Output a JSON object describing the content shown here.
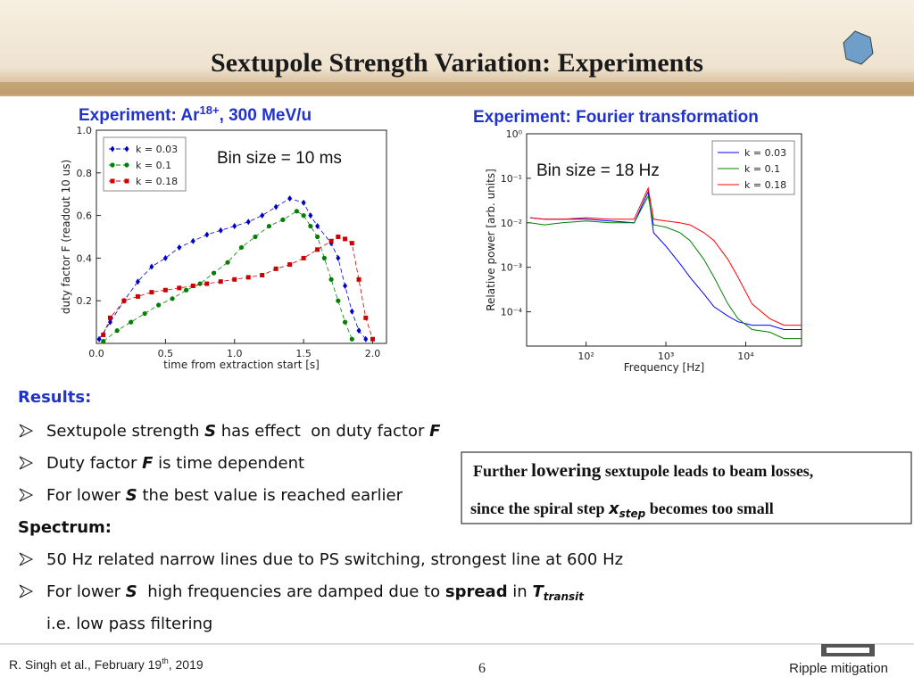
{
  "header": {
    "title": "Sextupole Strength Variation: Experiments"
  },
  "chart_data": [
    {
      "type": "line",
      "title": {
        "text": "Experiment: Ar",
        "superscript": "18+",
        "suffix": ", 300 MeV/u"
      },
      "annotation": "Bin size = 10 ms",
      "xlabel": "time from extraction start [s]",
      "ylabel": "duty factor F (readout 10 us)",
      "xlim": [
        0,
        2.1
      ],
      "ylim": [
        0,
        1
      ],
      "xticks": [
        {
          "value": 0,
          "label": "0.0"
        },
        0.5,
        {
          "value": 1,
          "label": "1.0"
        },
        1.5,
        {
          "value": 2,
          "label": "2.0"
        }
      ],
      "yticks": [
        0.2,
        0.4,
        0.6,
        0.8,
        {
          "value": 1,
          "label": "1.0"
        }
      ],
      "legend": "upper left",
      "linestyle": "dashed",
      "markers": true,
      "series": [
        {
          "name": "k = 0.03",
          "color": "#0000cc",
          "marker": "diamond",
          "x": [
            0.02,
            0.1,
            0.2,
            0.3,
            0.4,
            0.5,
            0.6,
            0.7,
            0.8,
            0.9,
            1.0,
            1.1,
            1.2,
            1.3,
            1.4,
            1.5,
            1.55,
            1.6,
            1.7,
            1.75,
            1.8,
            1.85,
            1.9,
            1.95
          ],
          "values": [
            0.02,
            0.1,
            0.2,
            0.29,
            0.36,
            0.4,
            0.45,
            0.48,
            0.51,
            0.53,
            0.55,
            0.57,
            0.6,
            0.64,
            0.68,
            0.66,
            0.6,
            0.55,
            0.47,
            0.4,
            0.27,
            0.15,
            0.06,
            0.02
          ]
        },
        {
          "name": "k = 0.1",
          "color": "#007f00",
          "marker": "circle",
          "x": [
            0.05,
            0.15,
            0.25,
            0.35,
            0.45,
            0.55,
            0.65,
            0.75,
            0.85,
            0.95,
            1.05,
            1.15,
            1.25,
            1.35,
            1.45,
            1.5,
            1.55,
            1.6,
            1.65,
            1.7,
            1.75,
            1.8,
            1.85
          ],
          "values": [
            0.01,
            0.06,
            0.1,
            0.14,
            0.18,
            0.21,
            0.25,
            0.28,
            0.33,
            0.38,
            0.45,
            0.5,
            0.55,
            0.58,
            0.62,
            0.6,
            0.55,
            0.5,
            0.4,
            0.3,
            0.2,
            0.1,
            0.02
          ]
        },
        {
          "name": "k = 0.18",
          "color": "#cc0000",
          "marker": "square",
          "x": [
            0.05,
            0.1,
            0.2,
            0.3,
            0.4,
            0.5,
            0.6,
            0.7,
            0.8,
            0.9,
            1.0,
            1.1,
            1.2,
            1.3,
            1.4,
            1.5,
            1.6,
            1.7,
            1.75,
            1.8,
            1.85,
            1.9,
            1.95,
            2.0
          ],
          "values": [
            0.04,
            0.12,
            0.2,
            0.22,
            0.24,
            0.25,
            0.26,
            0.27,
            0.28,
            0.29,
            0.3,
            0.31,
            0.32,
            0.35,
            0.37,
            0.4,
            0.44,
            0.48,
            0.5,
            0.49,
            0.47,
            0.3,
            0.12,
            0.02
          ]
        }
      ]
    },
    {
      "type": "line",
      "title": "Experiment: Fourier transformation",
      "annotation": "Bin size = 18 Hz",
      "xlabel": "Frequency [Hz]",
      "ylabel": "Relative power [arb. units]",
      "xscale": "log",
      "yscale": "log",
      "xlim": [
        18,
        50000
      ],
      "ylim": [
        1.7e-05,
        1
      ],
      "xticks": [
        {
          "value": 100,
          "label": "10²"
        },
        {
          "value": 1000,
          "label": "10³"
        },
        {
          "value": 10000,
          "label": "10⁴"
        }
      ],
      "yticks": [
        {
          "value": 1,
          "label": "10⁰"
        },
        {
          "value": 0.1,
          "label": "10⁻¹"
        },
        {
          "value": 0.01,
          "label": "10⁻²"
        },
        {
          "value": 0.001,
          "label": "10⁻³"
        },
        {
          "value": 0.0001,
          "label": "10⁻⁴"
        }
      ],
      "legend": "upper right",
      "linestyle": "solid",
      "markers": false,
      "series": [
        {
          "name": "k = 0.03",
          "color": "#0000ff",
          "x": [
            20,
            30,
            50,
            100,
            200,
            400,
            600,
            700,
            1000,
            1500,
            2000,
            3000,
            4000,
            6000,
            8000,
            12000,
            20000,
            30000,
            50000
          ],
          "values": [
            0.013,
            0.012,
            0.012,
            0.012,
            0.011,
            0.01,
            0.05,
            0.006,
            0.003,
            0.0012,
            0.0006,
            0.00025,
            0.00013,
            8e-05,
            6e-05,
            5e-05,
            5e-05,
            4e-05,
            4e-05
          ]
        },
        {
          "name": "k = 0.1",
          "color": "#008000",
          "x": [
            20,
            30,
            50,
            100,
            200,
            400,
            600,
            700,
            1000,
            1500,
            2000,
            3000,
            4000,
            6000,
            8000,
            12000,
            20000,
            30000,
            50000
          ],
          "values": [
            0.01,
            0.009,
            0.01,
            0.011,
            0.01,
            0.01,
            0.04,
            0.009,
            0.008,
            0.006,
            0.004,
            0.0015,
            0.0006,
            0.00015,
            7e-05,
            4e-05,
            3.5e-05,
            2.5e-05,
            2.5e-05
          ]
        },
        {
          "name": "k = 0.18",
          "color": "#ff0000",
          "x": [
            20,
            30,
            50,
            100,
            200,
            400,
            600,
            700,
            1000,
            1500,
            2000,
            3000,
            4000,
            6000,
            8000,
            12000,
            20000,
            30000,
            50000
          ],
          "values": [
            0.013,
            0.012,
            0.012,
            0.013,
            0.012,
            0.012,
            0.06,
            0.012,
            0.011,
            0.01,
            0.009,
            0.006,
            0.004,
            0.0015,
            0.0006,
            0.00015,
            7e-05,
            5e-05,
            5e-05
          ]
        }
      ]
    }
  ],
  "results": {
    "heading": "Results:",
    "items": [
      [
        "Sextupole strength ",
        "S",
        " has effect  on duty factor ",
        "F"
      ],
      [
        "Duty factor ",
        "F",
        " is time dependent"
      ],
      [
        "For lower ",
        "S",
        " the best value is reached earlier"
      ]
    ]
  },
  "spectrum": {
    "heading": "Spectrum:",
    "items": [
      [
        "50 Hz related narrow lines due to PS switching, strongest line at 600 Hz"
      ],
      [
        "For lower ",
        "S",
        "  high frequencies are damped due to ",
        "spread",
        " in ",
        "T",
        "transit"
      ]
    ],
    "note": "i.e. low pass filtering"
  },
  "callout": {
    "line1": [
      "Further ",
      "lowering",
      " sextupole leads to beam losses,"
    ],
    "line2": [
      "since the spiral step ",
      "x",
      "step",
      " becomes too small"
    ]
  },
  "footer": {
    "author": [
      "R. Singh et al., February 19",
      "th",
      ", 2019"
    ],
    "page": "6",
    "topic": "Ripple mitigation"
  }
}
